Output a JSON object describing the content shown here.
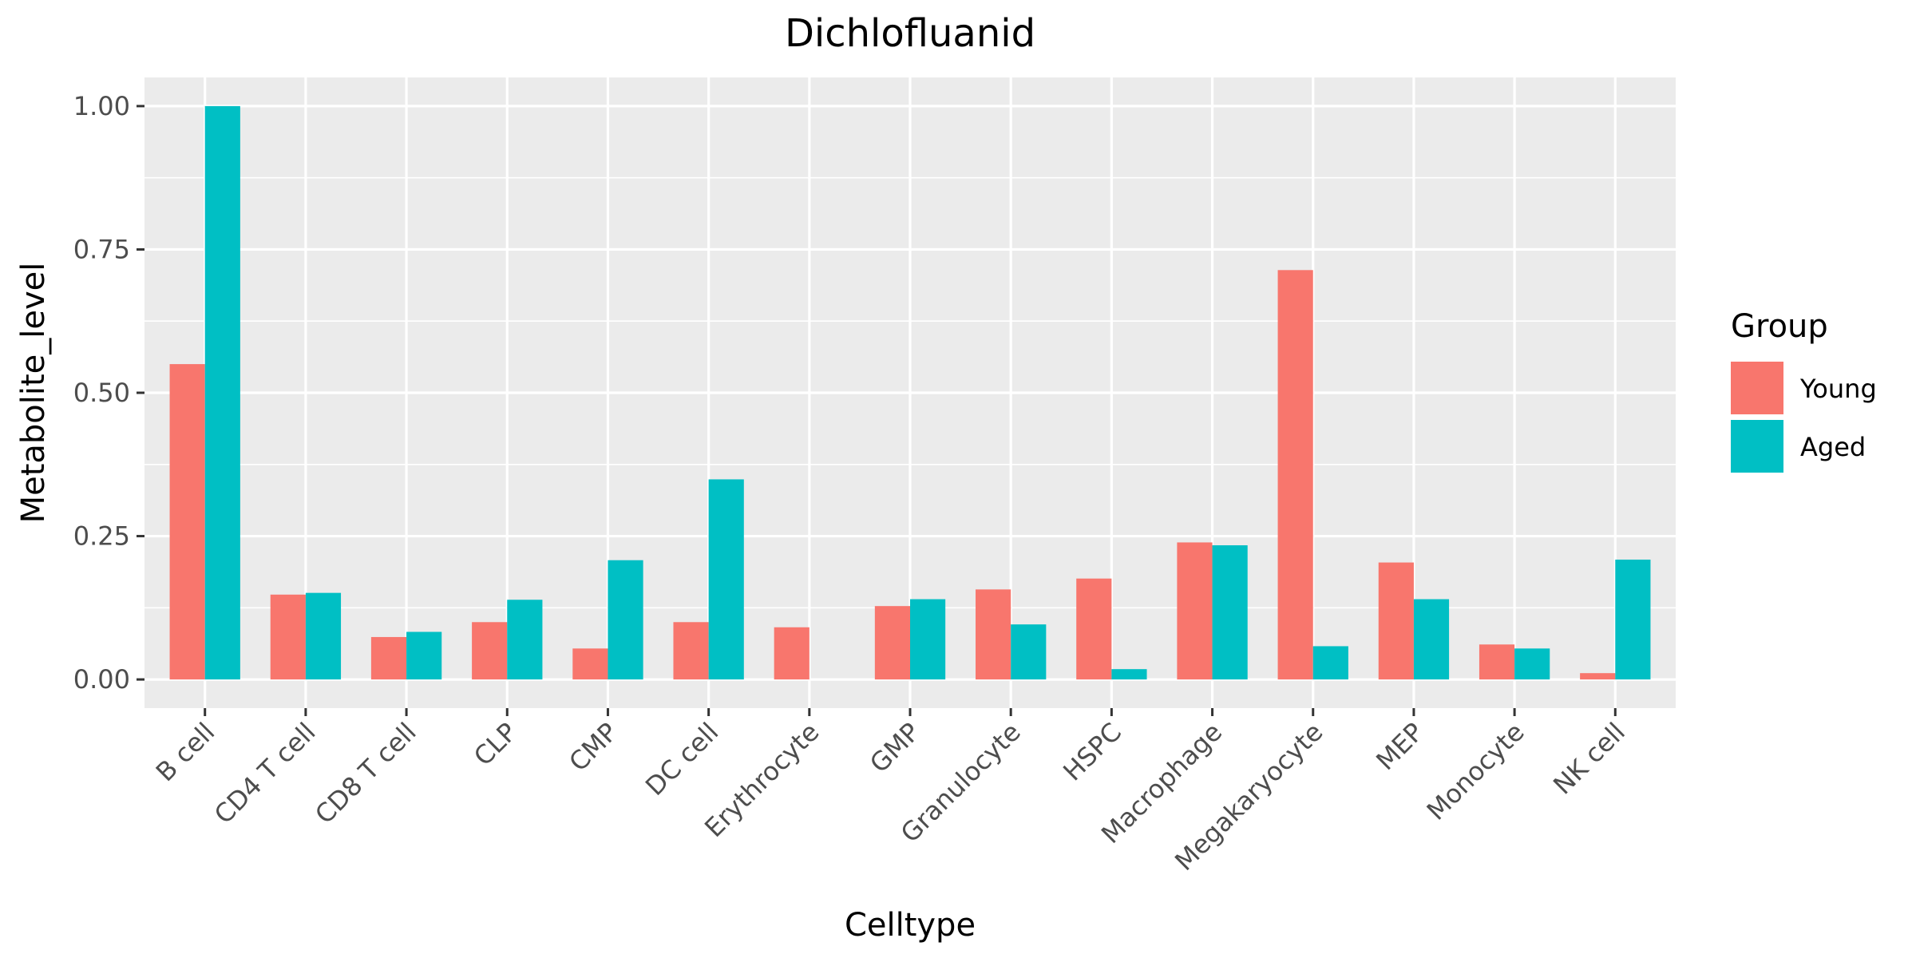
{
  "chart_data": {
    "type": "bar",
    "title": "Dichlofluanid",
    "xlabel": "Celltype",
    "ylabel": "Metabolite_level",
    "ylim": [
      -0.05,
      1.05
    ],
    "yticks": [
      0.0,
      0.25,
      0.5,
      0.75,
      1.0
    ],
    "ytick_labels": [
      "0.00",
      "0.25",
      "0.50",
      "0.75",
      "1.00"
    ],
    "grid": true,
    "legend": {
      "title": "Group",
      "position": "right"
    },
    "categories": [
      "B cell",
      "CD4 T cell",
      "CD8 T cell",
      "CLP",
      "CMP",
      "DC cell",
      "Erythrocyte",
      "GMP",
      "Granulocyte",
      "HSPC",
      "Macrophage",
      "Megakaryocyte",
      "MEP",
      "Monocyte",
      "NK cell"
    ],
    "series": [
      {
        "name": "Young",
        "color": "#F8766D",
        "values": [
          0.55,
          0.148,
          0.074,
          0.1,
          0.054,
          0.1,
          0.091,
          0.128,
          0.157,
          0.176,
          0.239,
          0.714,
          0.204,
          0.061,
          0.011
        ]
      },
      {
        "name": "Aged",
        "color": "#00BFC4",
        "values": [
          1.0,
          0.151,
          0.083,
          0.139,
          0.208,
          0.349,
          0.0,
          0.14,
          0.096,
          0.018,
          0.234,
          0.058,
          0.14,
          0.054,
          0.209
        ]
      }
    ]
  }
}
